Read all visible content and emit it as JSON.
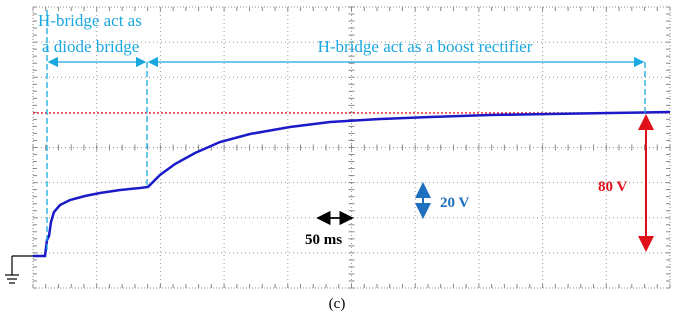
{
  "annotations": {
    "diode_phase": [
      "H-bridge act as",
      "a diode bridge"
    ],
    "boost_phase": "H-bridge act as a boost rectifier",
    "volt_scale": "20 V",
    "time_scale": "50 ms",
    "step": "80 V"
  },
  "caption": "(c)"
}
